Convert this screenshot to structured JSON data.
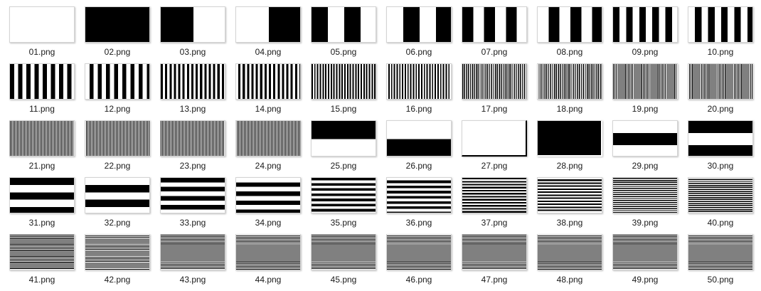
{
  "colors": {
    "background": "#ffffff",
    "pattern_dark": "#000000",
    "pattern_light": "#ffffff",
    "thumb_border": "#d4d4d4",
    "caption_text": "#1a1a1a"
  },
  "files": [
    {
      "name": "01.png",
      "pattern": {
        "kind": "solid",
        "color": "white"
      }
    },
    {
      "name": "02.png",
      "pattern": {
        "kind": "solid",
        "color": "black"
      }
    },
    {
      "name": "03.png",
      "pattern": {
        "kind": "vertical-bars",
        "periods": 1,
        "first": "black"
      }
    },
    {
      "name": "04.png",
      "pattern": {
        "kind": "vertical-bars",
        "periods": 1,
        "first": "white"
      }
    },
    {
      "name": "05.png",
      "pattern": {
        "kind": "vertical-bars",
        "periods": 2,
        "first": "black"
      }
    },
    {
      "name": "06.png",
      "pattern": {
        "kind": "vertical-bars",
        "periods": 2,
        "first": "white"
      }
    },
    {
      "name": "07.png",
      "pattern": {
        "kind": "vertical-bars",
        "periods": 3,
        "first": "black"
      }
    },
    {
      "name": "08.png",
      "pattern": {
        "kind": "vertical-bars",
        "periods": 3,
        "first": "white"
      }
    },
    {
      "name": "09.png",
      "pattern": {
        "kind": "vertical-bars",
        "periods": 5,
        "first": "black"
      }
    },
    {
      "name": "10.png",
      "pattern": {
        "kind": "vertical-bars",
        "periods": 5,
        "first": "white"
      }
    },
    {
      "name": "11.png",
      "pattern": {
        "kind": "vertical-bars",
        "periods": 8,
        "first": "black"
      }
    },
    {
      "name": "12.png",
      "pattern": {
        "kind": "vertical-bars",
        "periods": 8,
        "first": "white"
      }
    },
    {
      "name": "13.png",
      "pattern": {
        "kind": "vertical-bars",
        "periods": 15,
        "first": "black"
      }
    },
    {
      "name": "14.png",
      "pattern": {
        "kind": "vertical-bars",
        "periods": 15,
        "first": "white"
      }
    },
    {
      "name": "15.png",
      "pattern": {
        "kind": "vertical-bars",
        "periods": 24,
        "first": "black"
      }
    },
    {
      "name": "16.png",
      "pattern": {
        "kind": "vertical-bars",
        "periods": 24,
        "first": "white"
      }
    },
    {
      "name": "17.png",
      "pattern": {
        "kind": "vertical-bars",
        "periods": 34,
        "first": "black"
      }
    },
    {
      "name": "18.png",
      "pattern": {
        "kind": "vertical-bars",
        "periods": 34,
        "first": "white"
      }
    },
    {
      "name": "19.png",
      "pattern": {
        "kind": "vertical-bars",
        "periods": 44,
        "first": "black"
      }
    },
    {
      "name": "20.png",
      "pattern": {
        "kind": "vertical-bars",
        "periods": 44,
        "first": "white"
      }
    },
    {
      "name": "21.png",
      "pattern": {
        "kind": "vertical-bars",
        "periods": 46,
        "first": "black"
      }
    },
    {
      "name": "22.png",
      "pattern": {
        "kind": "vertical-bars",
        "periods": 46,
        "first": "white"
      }
    },
    {
      "name": "23.png",
      "pattern": {
        "kind": "vertical-bars",
        "periods": 46,
        "first": "black"
      }
    },
    {
      "name": "24.png",
      "pattern": {
        "kind": "vertical-bars",
        "periods": 46,
        "first": "white"
      }
    },
    {
      "name": "25.png",
      "pattern": {
        "kind": "horizontal-bars",
        "periods": 1,
        "first": "black"
      }
    },
    {
      "name": "26.png",
      "pattern": {
        "kind": "horizontal-bars",
        "periods": 1,
        "first": "white"
      }
    },
    {
      "name": "27.png",
      "pattern": {
        "kind": "edge-frame",
        "color": "white"
      }
    },
    {
      "name": "28.png",
      "pattern": {
        "kind": "edge-frame",
        "color": "black"
      }
    },
    {
      "name": "29.png",
      "pattern": {
        "kind": "horizontal-bars",
        "periods": 1.5,
        "first": "white"
      }
    },
    {
      "name": "30.png",
      "pattern": {
        "kind": "horizontal-bars",
        "periods": 1.5,
        "first": "black"
      }
    },
    {
      "name": "31.png",
      "pattern": {
        "kind": "horizontal-bars",
        "periods": 2.5,
        "first": "black"
      }
    },
    {
      "name": "32.png",
      "pattern": {
        "kind": "horizontal-bars",
        "periods": 2.5,
        "first": "white"
      }
    },
    {
      "name": "33.png",
      "pattern": {
        "kind": "horizontal-bars",
        "periods": 4,
        "first": "black"
      }
    },
    {
      "name": "34.png",
      "pattern": {
        "kind": "horizontal-bars",
        "periods": 4,
        "first": "white"
      }
    },
    {
      "name": "35.png",
      "pattern": {
        "kind": "horizontal-bars",
        "periods": 7,
        "first": "black"
      }
    },
    {
      "name": "36.png",
      "pattern": {
        "kind": "horizontal-bars",
        "periods": 7,
        "first": "white"
      }
    },
    {
      "name": "37.png",
      "pattern": {
        "kind": "horizontal-bars",
        "periods": 12,
        "first": "black"
      }
    },
    {
      "name": "38.png",
      "pattern": {
        "kind": "horizontal-bars",
        "periods": 12,
        "first": "white"
      }
    },
    {
      "name": "39.png",
      "pattern": {
        "kind": "horizontal-bars",
        "periods": 18,
        "first": "black"
      }
    },
    {
      "name": "40.png",
      "pattern": {
        "kind": "horizontal-bars",
        "periods": 18,
        "first": "white"
      }
    },
    {
      "name": "41.png",
      "pattern": {
        "kind": "horizontal-bars",
        "periods": 24,
        "first": "black"
      }
    },
    {
      "name": "42.png",
      "pattern": {
        "kind": "horizontal-bars",
        "periods": 24,
        "first": "white"
      }
    },
    {
      "name": "43.png",
      "pattern": {
        "kind": "horizontal-bars",
        "periods": 25,
        "first": "black"
      }
    },
    {
      "name": "44.png",
      "pattern": {
        "kind": "horizontal-bars",
        "periods": 25,
        "first": "white"
      }
    },
    {
      "name": "45.png",
      "pattern": {
        "kind": "horizontal-bars",
        "periods": 25,
        "first": "black"
      }
    },
    {
      "name": "46.png",
      "pattern": {
        "kind": "horizontal-bars",
        "periods": 25,
        "first": "white"
      }
    },
    {
      "name": "47.png",
      "pattern": {
        "kind": "horizontal-bars",
        "periods": 25,
        "first": "black"
      }
    },
    {
      "name": "48.png",
      "pattern": {
        "kind": "horizontal-bars",
        "periods": 25,
        "first": "white"
      }
    },
    {
      "name": "49.png",
      "pattern": {
        "kind": "horizontal-bars",
        "periods": 25,
        "first": "black"
      }
    },
    {
      "name": "50.png",
      "pattern": {
        "kind": "horizontal-bars",
        "periods": 25,
        "first": "white"
      }
    }
  ]
}
